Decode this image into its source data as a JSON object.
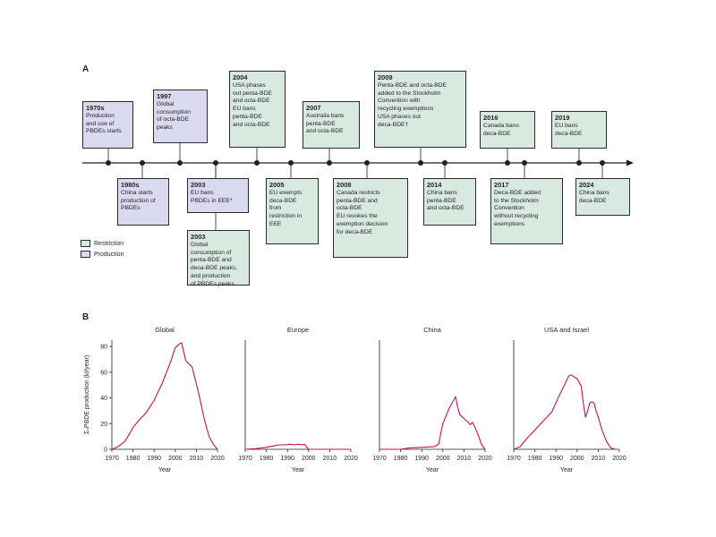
{
  "panel_a": {
    "label": "A",
    "events": [
      {
        "year": "1970s",
        "text": "Production\nand use of\nPBDEs starts",
        "type": "production",
        "side": "above"
      },
      {
        "year": "1980s",
        "text": "China starts\nproduction of\nPBDEs",
        "type": "production",
        "side": "below"
      },
      {
        "year": "1997",
        "text": "Global\nconsumption\nof octa-BDE\npeaks",
        "type": "production",
        "side": "above"
      },
      {
        "year": "2003",
        "text": "EU bans\nPBDEs in EEE*",
        "type": "production",
        "side": "below"
      },
      {
        "year": "2003",
        "text": "Global\nconsumption of\npenta-BDE and\ndeca-BDE peaks,\nand production\nof PBDEs peaks",
        "type": "restriction",
        "side": "below"
      },
      {
        "year": "2004",
        "text": "USA phases\nout penta-BDE\nand octa-BDE\nEU bans\npenta-BDE\nand octa-BDE",
        "type": "restriction",
        "side": "above"
      },
      {
        "year": "2005",
        "text": "EU exempts\ndeca-BDE\nfrom\nrestriction in\nEEE",
        "type": "restriction",
        "side": "below"
      },
      {
        "year": "2007",
        "text": "Australia bans\npenta-BDE\nand octa-BDE",
        "type": "restriction",
        "side": "above"
      },
      {
        "year": "2008",
        "text": "Canada restricts\npenta-BDE and\nocta-BDE\nEU revokes the\nexemption decision\nfor deca-BDE",
        "type": "restriction",
        "side": "below"
      },
      {
        "year": "2009",
        "text": "Penta-BDE and octa-BDE\nadded to the Stockholm\nConvention with\nrecycling exemptions\nUSA phases out\ndeca-BDE†",
        "type": "restriction",
        "side": "above"
      },
      {
        "year": "2014",
        "text": "China bans\npenta-BDE\nand octa-BDE",
        "type": "restriction",
        "side": "below"
      },
      {
        "year": "2016",
        "text": "Canada bans\ndeca-BDE",
        "type": "restriction",
        "side": "above"
      },
      {
        "year": "2017",
        "text": "Deca-BDE added\nto the Stockholm\nConvention\nwithout recycling\nexemptions",
        "type": "restriction",
        "side": "below"
      },
      {
        "year": "2019",
        "text": "EU bans\ndeca-BDE",
        "type": "restriction",
        "side": "above"
      },
      {
        "year": "2024",
        "text": "China bans\ndeca-BDE",
        "type": "restriction",
        "side": "below"
      }
    ],
    "legend": {
      "restriction": "Restriction",
      "production": "Production"
    },
    "colors": {
      "restriction": "#d8e9e0",
      "production": "#d9d9ef",
      "border": "#2b2b2b"
    }
  },
  "panel_b": {
    "label": "B",
    "ylabel": "Σ₅PBDE production (kt/year)",
    "xlabel": "Year",
    "line_color": "#c0114f"
  },
  "chart_data": [
    {
      "type": "line",
      "title": "Global",
      "xlabel": "Year",
      "ylabel": "Σ₅PBDE production (kt/year)",
      "xlim": [
        1970,
        2020
      ],
      "ylim": [
        0,
        85
      ],
      "xticks": [
        1970,
        1980,
        1990,
        2000,
        2010,
        2020
      ],
      "yticks": [
        0,
        20,
        40,
        60,
        80
      ],
      "x": [
        1970,
        1973,
        1976,
        1978,
        1980,
        1983,
        1986,
        1990,
        1994,
        1998,
        2000,
        2002,
        2003,
        2005,
        2008,
        2011,
        2014,
        2016,
        2018,
        2020
      ],
      "y": [
        0,
        2,
        6,
        11,
        17,
        23,
        28,
        38,
        52,
        69,
        79,
        82,
        83,
        69,
        64,
        44,
        22,
        10,
        4,
        0
      ]
    },
    {
      "type": "line",
      "title": "Europe",
      "xlabel": "Year",
      "xlim": [
        1970,
        2020
      ],
      "ylim": [
        0,
        85
      ],
      "xticks": [
        1970,
        1980,
        1990,
        2000,
        2010,
        2020
      ],
      "x": [
        1970,
        1975,
        1980,
        1983,
        1986,
        1989,
        1991,
        1993,
        1995,
        1997,
        1998,
        1999,
        2000,
        2003,
        2020
      ],
      "y": [
        0,
        0.5,
        1.5,
        2.5,
        3.5,
        3.5,
        4,
        3.5,
        4,
        3.5,
        4,
        2,
        0,
        0,
        0
      ]
    },
    {
      "type": "line",
      "title": "China",
      "xlabel": "Year",
      "xlim": [
        1970,
        2020
      ],
      "ylim": [
        0,
        85
      ],
      "xticks": [
        1970,
        1980,
        1990,
        2000,
        2010,
        2020
      ],
      "x": [
        1970,
        1980,
        1984,
        1990,
        1996,
        1998,
        2000,
        2003,
        2005,
        2006,
        2007,
        2008,
        2010,
        2012,
        2013,
        2014,
        2015,
        2017,
        2018,
        2019,
        2020
      ],
      "y": [
        0,
        0,
        1,
        1.5,
        2,
        4,
        20,
        32,
        38,
        41,
        33,
        27,
        24,
        21,
        19,
        21,
        18,
        10,
        5,
        2,
        0
      ]
    },
    {
      "type": "line",
      "title": "USA and Israel",
      "xlabel": "Year",
      "xlim": [
        1970,
        2020
      ],
      "ylim": [
        0,
        85
      ],
      "xticks": [
        1970,
        1980,
        1990,
        2000,
        2010,
        2020
      ],
      "x": [
        1970,
        1973,
        1976,
        1980,
        1984,
        1988,
        1991,
        1994,
        1996,
        1997,
        1998,
        2000,
        2002,
        2003,
        2004,
        2005,
        2006,
        2007,
        2008,
        2009,
        2010,
        2012,
        2014,
        2016,
        2018
      ],
      "y": [
        0,
        2,
        8,
        15,
        22,
        29,
        40,
        50,
        57,
        58,
        57,
        55,
        49,
        35,
        25,
        30,
        36,
        37,
        36,
        30,
        25,
        14,
        6,
        1,
        0
      ]
    }
  ]
}
